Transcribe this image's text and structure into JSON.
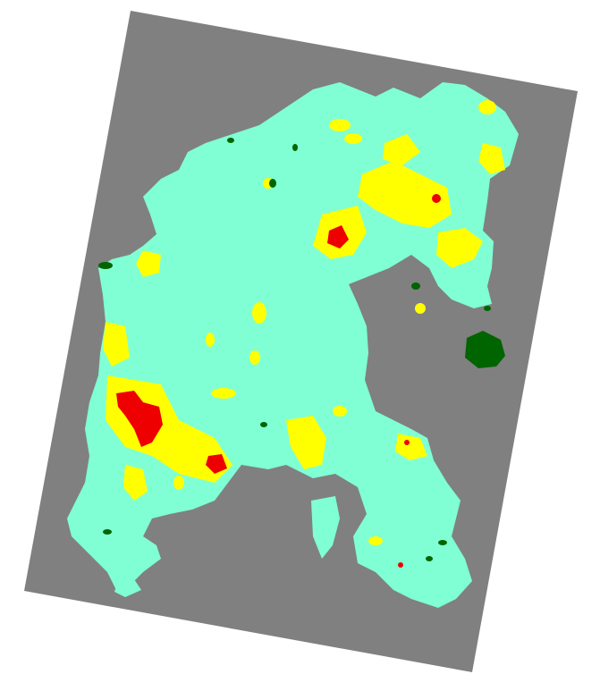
{
  "map": {
    "type": "classified-raster",
    "colors": {
      "background": "#ffffff",
      "nodata_frame": "#808080",
      "class_main": "#80ffd4",
      "class_yellow": "#ffff00",
      "class_red": "#ee0000",
      "class_darkgreen": "#006400"
    }
  }
}
